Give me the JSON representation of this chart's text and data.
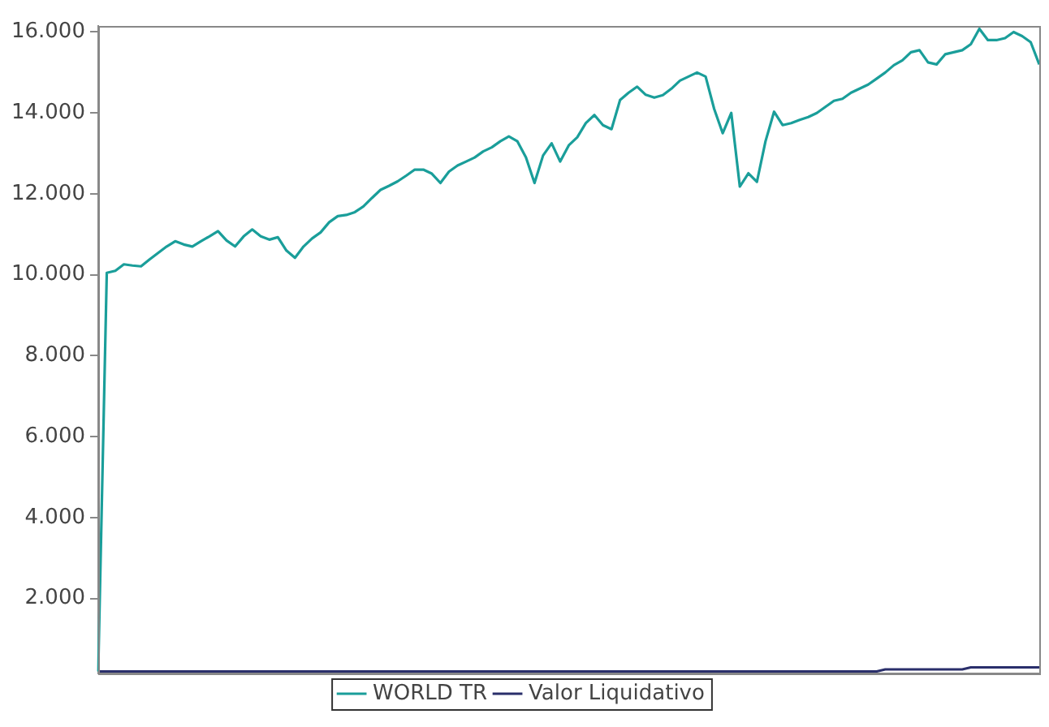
{
  "chart_data": {
    "type": "line",
    "categories": [
      null,
      null,
      null,
      null,
      null,
      null,
      null,
      null,
      null,
      null,
      null,
      null,
      null,
      null,
      null,
      null,
      null,
      null,
      null,
      null,
      null,
      null,
      null,
      null,
      null,
      null,
      null,
      null,
      null,
      null,
      null,
      null,
      null,
      null,
      null,
      null,
      null,
      null,
      null,
      null,
      null,
      null,
      null,
      null,
      null,
      null,
      null,
      null,
      null,
      null,
      null,
      null,
      null,
      null,
      null,
      null,
      null,
      null,
      null,
      null,
      null,
      null,
      null,
      null,
      null,
      null,
      null,
      null,
      null,
      null,
      null,
      null,
      null,
      null,
      null,
      null,
      null,
      null,
      null,
      null,
      null,
      null,
      null,
      null,
      null,
      null,
      null,
      null,
      null,
      null,
      null,
      null,
      null,
      null,
      null,
      null,
      null,
      null,
      null,
      null,
      null,
      null,
      null,
      null,
      null,
      null,
      null,
      null,
      null,
      null,
      null
    ],
    "series": [
      {
        "name": "WORLD TR",
        "color": "#1a9e9a",
        "values": [
          200,
          10050,
          10100,
          10260,
          10230,
          10210,
          10380,
          10540,
          10700,
          10830,
          10750,
          10700,
          10830,
          10950,
          11080,
          10850,
          10700,
          10950,
          11120,
          10950,
          10870,
          10930,
          10600,
          10420,
          10700,
          10900,
          11050,
          11300,
          11450,
          11480,
          11550,
          11690,
          11900,
          12100,
          12200,
          12310,
          12450,
          12600,
          12600,
          12500,
          12270,
          12550,
          12700,
          12800,
          12900,
          13050,
          13150,
          13300,
          13420,
          13300,
          12900,
          12270,
          12950,
          13250,
          12800,
          13200,
          13400,
          13750,
          13950,
          13700,
          13600,
          14320,
          14500,
          14650,
          14450,
          14380,
          14440,
          14600,
          14800,
          14900,
          15000,
          14900,
          14100,
          13500,
          14000,
          12180,
          12510,
          12300,
          13300,
          14030,
          13700,
          13750,
          13830,
          13900,
          14000,
          14150,
          14300,
          14350,
          14500,
          14600,
          14700,
          14850,
          15000,
          15180,
          15300,
          15500,
          15550,
          15250,
          15200,
          15450,
          15500,
          15550,
          15700,
          16080,
          15800,
          15800,
          15850,
          16000,
          15900,
          15750,
          15200
        ]
      },
      {
        "name": "Valor Liquidativo",
        "color": "#2a2f6b",
        "values": [
          200,
          200,
          200,
          200,
          200,
          200,
          200,
          200,
          200,
          200,
          200,
          200,
          200,
          200,
          200,
          200,
          200,
          200,
          200,
          200,
          200,
          200,
          200,
          200,
          200,
          200,
          200,
          200,
          200,
          200,
          200,
          200,
          200,
          200,
          200,
          200,
          200,
          200,
          200,
          200,
          200,
          200,
          200,
          200,
          200,
          200,
          200,
          200,
          200,
          200,
          200,
          200,
          200,
          200,
          200,
          200,
          200,
          200,
          200,
          200,
          200,
          200,
          200,
          200,
          200,
          200,
          200,
          200,
          200,
          200,
          200,
          200,
          200,
          200,
          200,
          200,
          200,
          200,
          200,
          200,
          200,
          200,
          200,
          200,
          200,
          200,
          200,
          200,
          200,
          200,
          200,
          200,
          250,
          250,
          250,
          250,
          250,
          250,
          250,
          250,
          250,
          250,
          300,
          300,
          300,
          300,
          300,
          300,
          300,
          300,
          300
        ]
      }
    ],
    "ylim": [
      150,
      16150
    ],
    "yticks": [
      {
        "value": 2000,
        "label": "2.000"
      },
      {
        "value": 4000,
        "label": "4.000"
      },
      {
        "value": 6000,
        "label": "6.000"
      },
      {
        "value": 8000,
        "label": "8.000"
      },
      {
        "value": 10000,
        "label": "10.000"
      },
      {
        "value": 12000,
        "label": "12.000"
      },
      {
        "value": 14000,
        "label": "14.000"
      },
      {
        "value": 16000,
        "label": "16.000"
      }
    ],
    "tick_labels": "y",
    "grid": false,
    "legend": "bottom",
    "marker": "none",
    "line_style": "solid"
  }
}
